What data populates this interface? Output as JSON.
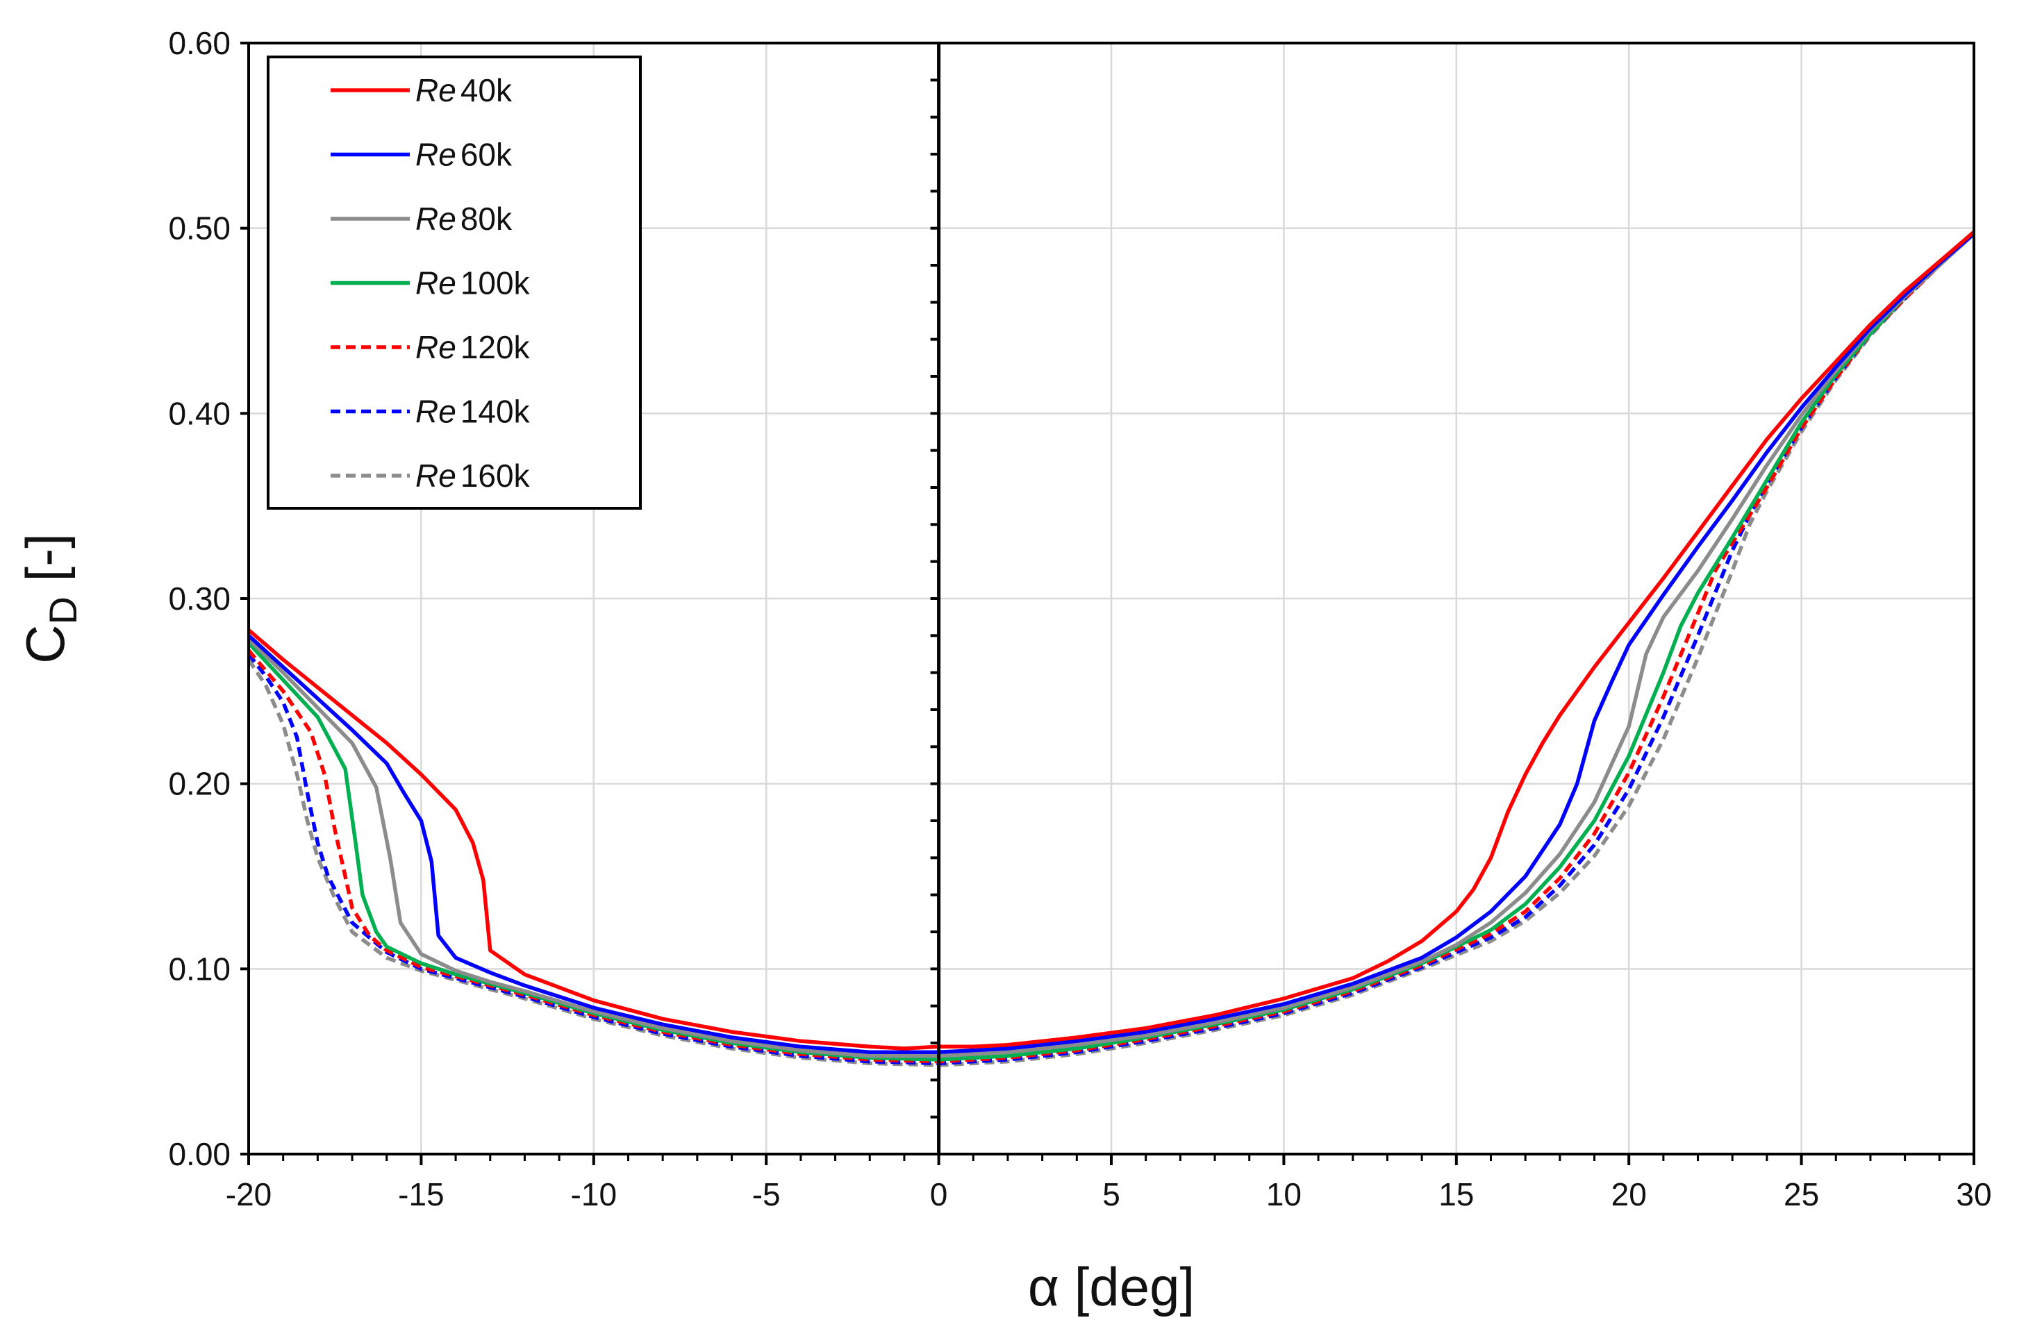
{
  "chart_data": {
    "type": "line",
    "title": "",
    "xlabel": "α [deg]",
    "ylabel_main": "C",
    "ylabel_sub": "D",
    "ylabel_tail": " [-]",
    "xlim": [
      -20,
      30
    ],
    "ylim": [
      0.0,
      0.6
    ],
    "x_ticks": [
      -20,
      -15,
      -10,
      -5,
      0,
      5,
      10,
      15,
      20,
      25,
      30
    ],
    "x_tick_labels": [
      "-20",
      "-15",
      "-10",
      "-5",
      "0",
      "5",
      "10",
      "15",
      "20",
      "25",
      "30"
    ],
    "y_ticks": [
      0.0,
      0.1,
      0.2,
      0.3,
      0.4,
      0.5,
      0.6
    ],
    "y_tick_labels": [
      "0.00",
      "0.10",
      "0.20",
      "0.30",
      "0.40",
      "0.50",
      "0.60"
    ],
    "grid": true,
    "legend_position": "top-left",
    "series": [
      {
        "name": "Re 40k",
        "re_label": "Re",
        "value_label": "40k",
        "color": "#ff0000",
        "dash": "solid",
        "x": [
          -20,
          -19,
          -18,
          -17,
          -16,
          -15,
          -14,
          -13.5,
          -13.2,
          -13,
          -12,
          -10,
          -8,
          -6,
          -4,
          -2,
          -1,
          0,
          1,
          2,
          4,
          6,
          8,
          10,
          12,
          13,
          14,
          15,
          15.5,
          16,
          16.5,
          17,
          17.5,
          18,
          19,
          20,
          21,
          22,
          23,
          24,
          25,
          26,
          27,
          28,
          29,
          30
        ],
        "y": [
          0.283,
          0.267,
          0.252,
          0.237,
          0.222,
          0.205,
          0.186,
          0.168,
          0.148,
          0.11,
          0.097,
          0.083,
          0.073,
          0.066,
          0.061,
          0.058,
          0.057,
          0.058,
          0.058,
          0.059,
          0.063,
          0.068,
          0.075,
          0.084,
          0.095,
          0.104,
          0.115,
          0.131,
          0.143,
          0.16,
          0.185,
          0.205,
          0.222,
          0.237,
          0.263,
          0.287,
          0.311,
          0.336,
          0.361,
          0.386,
          0.408,
          0.428,
          0.448,
          0.466,
          0.482,
          0.498
        ]
      },
      {
        "name": "Re 60k",
        "re_label": "Re",
        "value_label": "60k",
        "color": "#0000ff",
        "dash": "solid",
        "x": [
          -20,
          -19,
          -18,
          -17,
          -16,
          -15.5,
          -15,
          -14.7,
          -14.5,
          -14,
          -13,
          -12,
          -10,
          -8,
          -6,
          -4,
          -2,
          0,
          2,
          4,
          6,
          8,
          10,
          12,
          14,
          15,
          16,
          17,
          18,
          18.5,
          19,
          19.5,
          20,
          21,
          22,
          23,
          24,
          25,
          26,
          27,
          28,
          29,
          30
        ],
        "y": [
          0.28,
          0.263,
          0.246,
          0.229,
          0.211,
          0.195,
          0.18,
          0.158,
          0.118,
          0.106,
          0.098,
          0.091,
          0.079,
          0.07,
          0.063,
          0.058,
          0.055,
          0.055,
          0.057,
          0.061,
          0.066,
          0.073,
          0.081,
          0.092,
          0.106,
          0.117,
          0.131,
          0.15,
          0.178,
          0.2,
          0.234,
          0.255,
          0.275,
          0.302,
          0.328,
          0.353,
          0.379,
          0.403,
          0.425,
          0.446,
          0.464,
          0.481,
          0.497
        ]
      },
      {
        "name": "Re 80k",
        "re_label": "Re",
        "value_label": "80k",
        "color": "#8c8c8c",
        "dash": "solid",
        "x": [
          -20,
          -19,
          -18,
          -17,
          -16.3,
          -15.9,
          -15.6,
          -15,
          -14,
          -13,
          -12,
          -10,
          -8,
          -6,
          -4,
          -2,
          0,
          2,
          4,
          6,
          8,
          10,
          12,
          14,
          15,
          16,
          17,
          18,
          19,
          20,
          20.5,
          21,
          22,
          23,
          24,
          25,
          26,
          27,
          28,
          29,
          30
        ],
        "y": [
          0.278,
          0.26,
          0.241,
          0.222,
          0.198,
          0.16,
          0.125,
          0.108,
          0.099,
          0.093,
          0.088,
          0.077,
          0.068,
          0.061,
          0.056,
          0.053,
          0.053,
          0.055,
          0.059,
          0.064,
          0.071,
          0.079,
          0.09,
          0.104,
          0.113,
          0.125,
          0.141,
          0.162,
          0.19,
          0.231,
          0.27,
          0.29,
          0.315,
          0.343,
          0.372,
          0.399,
          0.423,
          0.445,
          0.463,
          0.48,
          0.497
        ]
      },
      {
        "name": "Re 100k",
        "re_label": "Re",
        "value_label": "100k",
        "color": "#00b050",
        "dash": "solid",
        "x": [
          -20,
          -19,
          -18,
          -17.2,
          -16.9,
          -16.7,
          -16.3,
          -16,
          -15,
          -14,
          -13,
          -12,
          -10,
          -8,
          -6,
          -4,
          -2,
          0,
          2,
          4,
          6,
          8,
          10,
          12,
          14,
          16,
          17,
          18,
          19,
          20,
          21,
          21.5,
          22,
          23,
          24,
          25,
          26,
          27,
          28,
          29,
          30
        ],
        "y": [
          0.276,
          0.256,
          0.236,
          0.208,
          0.168,
          0.14,
          0.12,
          0.112,
          0.103,
          0.097,
          0.092,
          0.087,
          0.076,
          0.067,
          0.06,
          0.055,
          0.052,
          0.051,
          0.053,
          0.057,
          0.063,
          0.07,
          0.078,
          0.089,
          0.103,
          0.121,
          0.135,
          0.155,
          0.18,
          0.215,
          0.26,
          0.285,
          0.303,
          0.333,
          0.364,
          0.395,
          0.421,
          0.443,
          0.463,
          0.48,
          0.497
        ]
      },
      {
        "name": "Re 120k",
        "re_label": "Re",
        "value_label": "120k",
        "color": "#ff0000",
        "dash": "dashed",
        "x": [
          -20,
          -19,
          -18.2,
          -17.8,
          -17.5,
          -17.2,
          -17,
          -16.5,
          -16,
          -15,
          -14,
          -13,
          -12,
          -10,
          -8,
          -6,
          -4,
          -2,
          0,
          2,
          4,
          6,
          8,
          10,
          12,
          14,
          16,
          17,
          18,
          19,
          20,
          21,
          22,
          22.5,
          23,
          24,
          25,
          26,
          27,
          28,
          29,
          30
        ],
        "y": [
          0.272,
          0.25,
          0.228,
          0.205,
          0.175,
          0.15,
          0.133,
          0.118,
          0.11,
          0.101,
          0.096,
          0.091,
          0.086,
          0.075,
          0.066,
          0.059,
          0.054,
          0.051,
          0.05,
          0.052,
          0.056,
          0.062,
          0.069,
          0.077,
          0.088,
          0.102,
          0.119,
          0.131,
          0.149,
          0.173,
          0.206,
          0.247,
          0.292,
          0.315,
          0.33,
          0.36,
          0.392,
          0.419,
          0.443,
          0.462,
          0.48,
          0.497
        ]
      },
      {
        "name": "Re 140k",
        "re_label": "Re",
        "value_label": "140k",
        "color": "#0000ff",
        "dash": "dashed",
        "x": [
          -20,
          -19.5,
          -19,
          -18.6,
          -18.3,
          -18,
          -17.7,
          -17,
          -16,
          -15,
          -14,
          -13,
          -12,
          -10,
          -8,
          -6,
          -4,
          -2,
          0,
          2,
          4,
          6,
          8,
          10,
          12,
          14,
          16,
          17,
          18,
          19,
          20,
          21,
          22,
          23,
          23.5,
          24,
          25,
          26,
          27,
          28,
          29,
          30
        ],
        "y": [
          0.27,
          0.258,
          0.244,
          0.225,
          0.195,
          0.168,
          0.15,
          0.125,
          0.109,
          0.1,
          0.095,
          0.09,
          0.085,
          0.074,
          0.065,
          0.058,
          0.053,
          0.05,
          0.049,
          0.051,
          0.055,
          0.061,
          0.068,
          0.076,
          0.087,
          0.101,
          0.117,
          0.128,
          0.145,
          0.167,
          0.197,
          0.236,
          0.28,
          0.326,
          0.345,
          0.362,
          0.392,
          0.419,
          0.443,
          0.462,
          0.48,
          0.497
        ]
      },
      {
        "name": "Re 160k",
        "re_label": "Re",
        "value_label": "160k",
        "color": "#8c8c8c",
        "dash": "dashed",
        "x": [
          -20,
          -19.5,
          -19,
          -18.6,
          -18.3,
          -18,
          -17.5,
          -17,
          -16,
          -15,
          -14,
          -13,
          -12,
          -10,
          -8,
          -6,
          -4,
          -2,
          0,
          2,
          4,
          6,
          8,
          10,
          12,
          14,
          16,
          17,
          18,
          19,
          20,
          21,
          22,
          23,
          23.5,
          24,
          25,
          26,
          27,
          28,
          29,
          30
        ],
        "y": [
          0.267,
          0.253,
          0.232,
          0.205,
          0.18,
          0.16,
          0.138,
          0.12,
          0.106,
          0.099,
          0.094,
          0.089,
          0.084,
          0.073,
          0.064,
          0.057,
          0.052,
          0.049,
          0.048,
          0.05,
          0.054,
          0.06,
          0.067,
          0.075,
          0.086,
          0.1,
          0.115,
          0.126,
          0.141,
          0.161,
          0.188,
          0.224,
          0.268,
          0.315,
          0.34,
          0.358,
          0.39,
          0.418,
          0.442,
          0.462,
          0.48,
          0.497
        ]
      }
    ]
  }
}
